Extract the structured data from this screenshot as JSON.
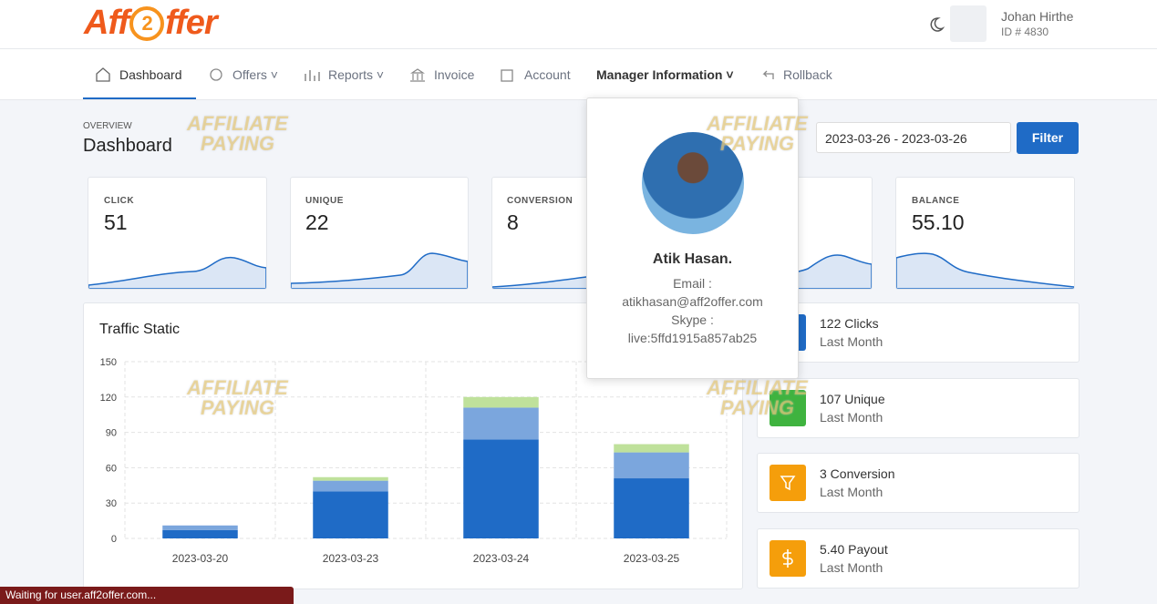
{
  "header": {
    "logo": {
      "left": "Aff",
      "mark": "2",
      "right": "ffer"
    },
    "user_name": "Johan Hirthe",
    "user_id": "ID # 4830"
  },
  "nav": [
    "Dashboard",
    "Offers",
    "Reports",
    "Invoice",
    "Account",
    "Manager Information",
    "Rollback"
  ],
  "overview": "OVERVIEW",
  "page_title": "Dashboard",
  "date_range": "2023-03-26 - 2023-03-26",
  "filter_button": "Filter",
  "stats": [
    {
      "label": "CLICK",
      "value": "51"
    },
    {
      "label": "UNIQUE",
      "value": "22"
    },
    {
      "label": "CONVERSION",
      "value": "8"
    },
    {
      "label": "BALANCE",
      "value": "55.10"
    }
  ],
  "side_cards": [
    {
      "title": "122 Clicks",
      "sub": "Last Month"
    },
    {
      "title": "107 Unique",
      "sub": "Last Month"
    },
    {
      "title": "3 Conversion",
      "sub": "Last Month"
    },
    {
      "title": "5.40 Payout",
      "sub": "Last Month"
    }
  ],
  "manager": {
    "name": "Atik Hasan.",
    "email_label": "Email :",
    "email": "atikhasan@aff2offer.com",
    "skype_label": "Skype :",
    "skype": "live:5ffd1915a857ab25"
  },
  "watermark": {
    "line1": "AFFILIATE",
    "line2": "PAYING"
  },
  "status_bar": "Waiting for user.aff2offer.com...",
  "chart_data": {
    "type": "bar",
    "stacked": true,
    "title": "Traffic Static",
    "categories": [
      "2023-03-20",
      "2023-03-23",
      "2023-03-24",
      "2023-03-25"
    ],
    "series": [
      {
        "color": "#1f6bc6",
        "values": [
          7,
          40,
          84,
          51
        ]
      },
      {
        "color": "#7ba6dd",
        "values": [
          4,
          9,
          27,
          22
        ]
      },
      {
        "color": "#bfe19b",
        "values": [
          0,
          3,
          9,
          7
        ]
      }
    ],
    "ylim": [
      0,
      150
    ],
    "yticks": [
      0,
      30,
      60,
      90,
      120,
      150
    ],
    "grid": true
  }
}
